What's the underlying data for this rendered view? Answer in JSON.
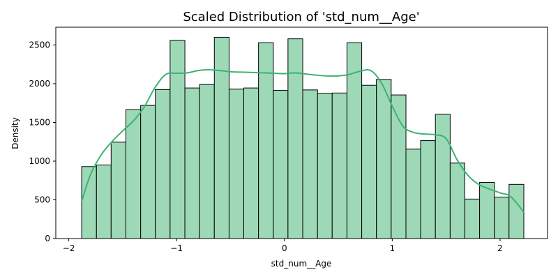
{
  "chart_data": {
    "type": "histogram",
    "title": "Scaled Distribution of 'std_num__Age'",
    "xlabel": "std_num__Age",
    "ylabel": "Density",
    "xlim": [
      -2.12,
      2.44
    ],
    "ylim": [
      0,
      2730
    ],
    "xticks": [
      -2,
      -1,
      0,
      1,
      2
    ],
    "xtick_labels": [
      "−2",
      "−1",
      "0",
      "1",
      "2"
    ],
    "yticks": [
      0,
      500,
      1000,
      1500,
      2000,
      2500
    ],
    "yticks_labels": [
      "0",
      "500",
      "1000",
      "1500",
      "2000",
      "2500"
    ],
    "grid": false,
    "bin_edges": [
      -1.88,
      -1.743,
      -1.607,
      -1.47,
      -1.333,
      -1.197,
      -1.06,
      -0.923,
      -0.787,
      -0.65,
      -0.513,
      -0.377,
      -0.24,
      -0.103,
      0.033,
      0.17,
      0.307,
      0.443,
      0.58,
      0.717,
      0.853,
      0.99,
      1.127,
      1.263,
      1.4,
      1.537,
      1.673,
      1.81,
      1.947,
      2.083,
      2.22
    ],
    "counts": [
      930,
      950,
      1245,
      1665,
      1720,
      1925,
      2560,
      1945,
      1990,
      2600,
      1930,
      1945,
      2530,
      1915,
      2580,
      1920,
      1875,
      1880,
      2530,
      1980,
      2055,
      1855,
      1155,
      1265,
      1605,
      975,
      510,
      725,
      535,
      700
    ],
    "kde": {
      "x": [
        -1.88,
        -1.8,
        -1.7,
        -1.6,
        -1.5,
        -1.4,
        -1.3,
        -1.2,
        -1.1,
        -1.0,
        -0.9,
        -0.8,
        -0.7,
        -0.6,
        -0.5,
        -0.4,
        -0.3,
        -0.2,
        -0.1,
        0.0,
        0.1,
        0.2,
        0.3,
        0.4,
        0.5,
        0.6,
        0.7,
        0.8,
        0.9,
        1.0,
        1.1,
        1.2,
        1.3,
        1.4,
        1.5,
        1.6,
        1.7,
        1.8,
        1.9,
        2.0,
        2.1,
        2.22
      ],
      "y": [
        480,
        820,
        1080,
        1250,
        1390,
        1520,
        1700,
        1950,
        2120,
        2135,
        2140,
        2170,
        2180,
        2170,
        2155,
        2150,
        2145,
        2140,
        2135,
        2130,
        2140,
        2125,
        2110,
        2100,
        2100,
        2120,
        2160,
        2170,
        2010,
        1710,
        1450,
        1370,
        1350,
        1340,
        1290,
        1020,
        820,
        700,
        640,
        590,
        540,
        340
      ]
    },
    "colors": {
      "bar_fill": "#9ed9b7",
      "bar_edge": "#000000",
      "kde_line": "#3cb371"
    }
  }
}
